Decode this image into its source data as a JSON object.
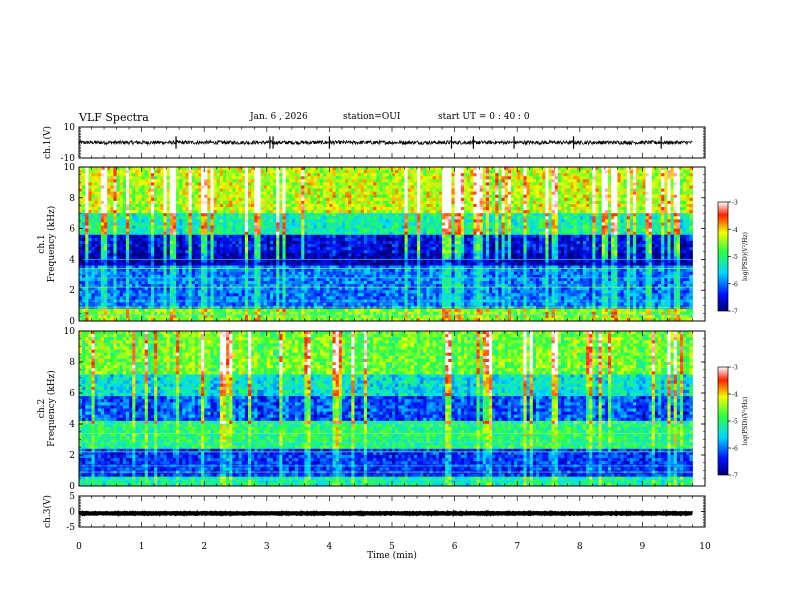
{
  "header": {
    "title": "VLF Spectra",
    "date": "Jan. 6 , 2026",
    "station": "station=OUI",
    "start_ut": "start UT = 0 : 40 : 0"
  },
  "chart_data": [
    {
      "type": "line",
      "id": "ch1-waveform",
      "ylabel": "ch.1(V)",
      "ylim": [
        -10,
        10
      ],
      "yticks": [
        "10",
        "-10"
      ],
      "xlim": [
        0,
        10
      ],
      "x_end": 9.8,
      "baseline": 0,
      "noise_amplitude": 1.2,
      "spike_times": [
        1.55,
        3.05,
        3.1,
        4.0,
        5.95,
        6.3,
        6.95,
        7.9,
        9.3
      ]
    },
    {
      "type": "heatmap",
      "id": "ch1-spectrogram",
      "ylabel": "ch.1\nFrequency (kHz)",
      "ylim": [
        0,
        10
      ],
      "yticks": [
        "0",
        "2",
        "4",
        "6",
        "8",
        "10"
      ],
      "xlim": [
        0,
        10
      ],
      "x_end": 9.8,
      "colorbar": {
        "label": "log(PSD)(V²/Hz)",
        "range": [
          -7,
          -3
        ],
        "ticks": [
          "-3",
          "-4",
          "-5",
          "-6",
          "-7"
        ]
      },
      "bands": [
        {
          "from": 0,
          "to": 0.7,
          "level": 0.6
        },
        {
          "from": 0.7,
          "to": 3.6,
          "level": 0.25
        },
        {
          "from": 3.6,
          "to": 4.4,
          "level": 0.05
        },
        {
          "from": 4.4,
          "to": 5.6,
          "level": 0.12
        },
        {
          "from": 5.6,
          "to": 7.0,
          "level": 0.45
        },
        {
          "from": 7.0,
          "to": 10,
          "level": 0.68
        }
      ]
    },
    {
      "type": "heatmap",
      "id": "ch2-spectrogram",
      "ylabel": "ch.2\nFrequency (kHz)",
      "ylim": [
        0,
        10
      ],
      "yticks": [
        "0",
        "2",
        "4",
        "6",
        "8",
        "10"
      ],
      "xlim": [
        0,
        10
      ],
      "x_end": 9.8,
      "colorbar": {
        "label": "log(PSD)(V²/Hz)",
        "range": [
          -7,
          -3
        ],
        "ticks": [
          "-3",
          "-4",
          "-5",
          "-6",
          "-7"
        ]
      },
      "bands": [
        {
          "from": 0,
          "to": 0.6,
          "level": 0.45
        },
        {
          "from": 0.6,
          "to": 2.4,
          "level": 0.18
        },
        {
          "from": 2.4,
          "to": 4.3,
          "level": 0.5
        },
        {
          "from": 4.3,
          "to": 5.8,
          "level": 0.22
        },
        {
          "from": 5.8,
          "to": 7.2,
          "level": 0.4
        },
        {
          "from": 7.2,
          "to": 10,
          "level": 0.6
        }
      ]
    },
    {
      "type": "line",
      "id": "ch3-waveform",
      "ylabel": "ch.3(V)",
      "ylim": [
        -5,
        5
      ],
      "yticks": [
        "5",
        "0",
        "-5"
      ],
      "xlim": [
        0,
        10
      ],
      "x_end": 9.8,
      "baseline": -0.6,
      "noise_amplitude": 0.1,
      "spike_times": []
    }
  ],
  "xaxis": {
    "label": "Time (min)",
    "ticks": [
      "0",
      "1",
      "2",
      "3",
      "4",
      "5",
      "6",
      "7",
      "8",
      "9",
      "10"
    ]
  },
  "colors": {
    "frame": "#000000",
    "background": "#ffffff"
  }
}
